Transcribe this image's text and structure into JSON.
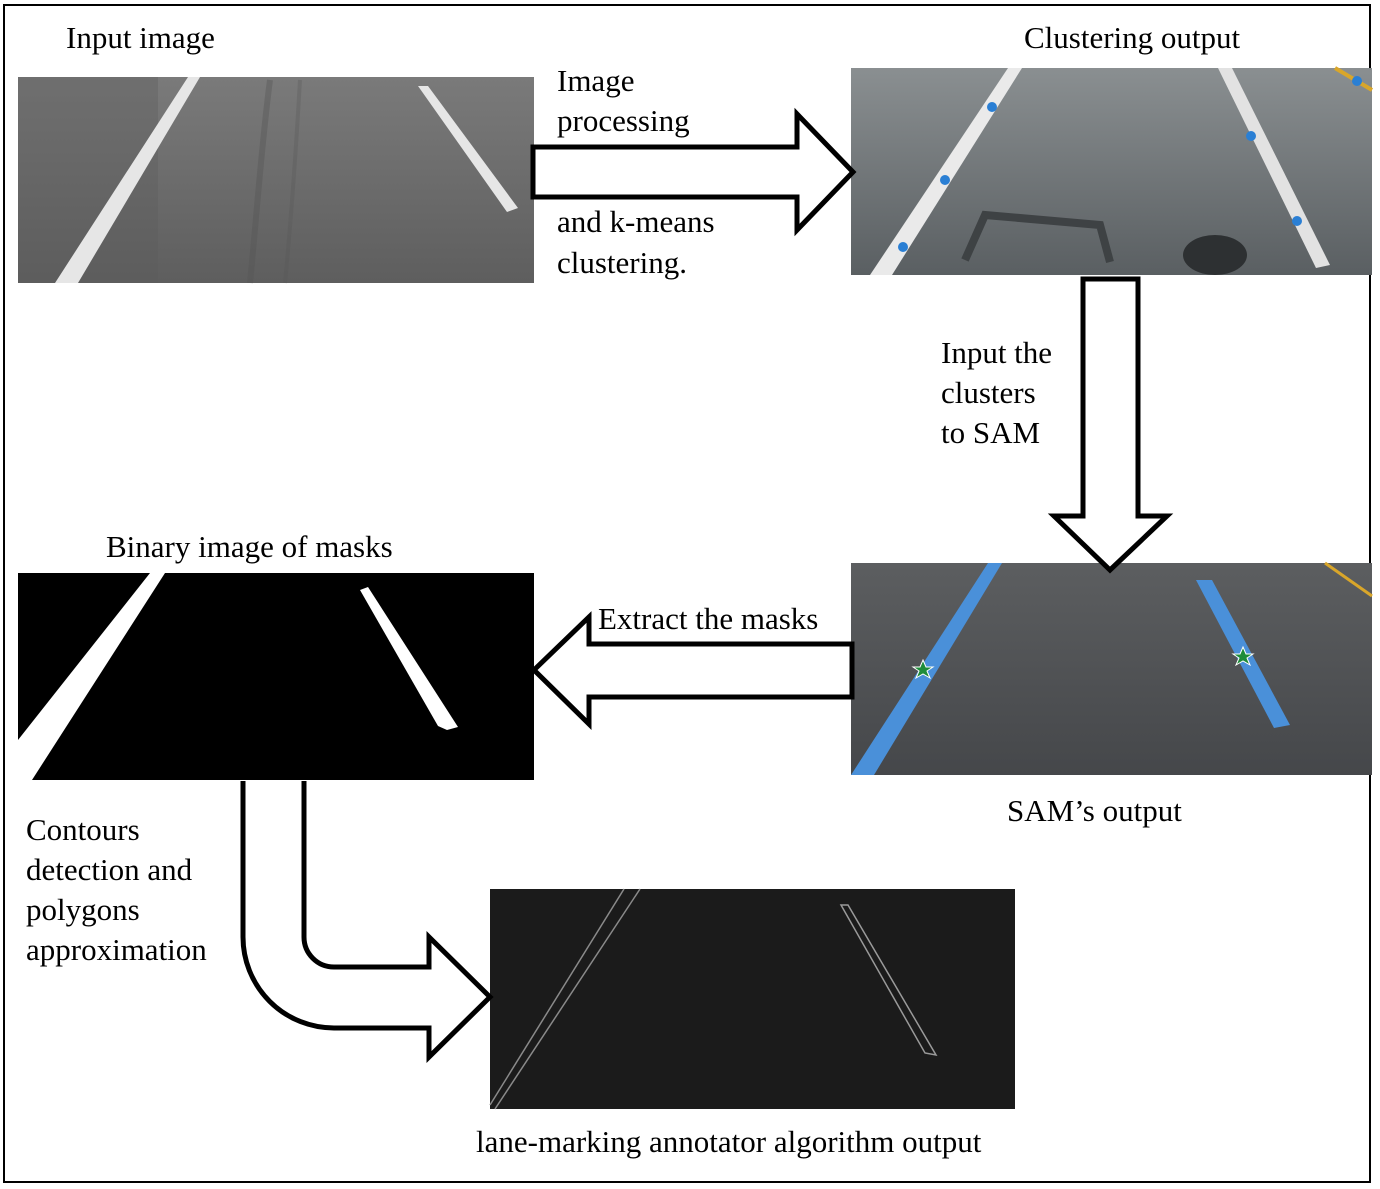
{
  "labels": {
    "input_image": "Input image",
    "clustering_output": "Clustering output",
    "binary_image": "Binary image of masks",
    "sam_output": "SAM’s output",
    "annotator_output": "lane-marking annotator algorithm output"
  },
  "arrows": {
    "processing": [
      "Image",
      "processing",
      "and k-means",
      "clustering."
    ],
    "to_sam": [
      "Input the",
      "clusters",
      "to SAM"
    ],
    "extract": "Extract the masks",
    "contours": [
      "Contours",
      "detection and",
      "polygons",
      "approximation"
    ]
  },
  "colors": {
    "frame": "#000000",
    "road": "#6e6e6e",
    "road_alt": "#4f5254",
    "lane_paint": "#e6e6e6",
    "cluster_point": "#2a7fd4",
    "sam_mask": "#4a90d9",
    "star": "#1e8c3a",
    "mask_bg": "#000000",
    "contour_bg": "#1b1b1b",
    "contour_line": "#8a8a8a"
  }
}
